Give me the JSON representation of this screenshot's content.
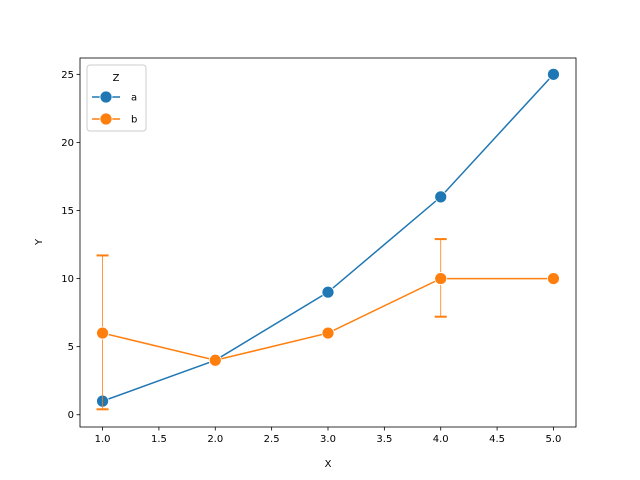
{
  "chart_data": {
    "type": "line",
    "xlabel": "X",
    "ylabel": "Y",
    "xlim": [
      0.8,
      5.2
    ],
    "ylim": [
      -0.9,
      26.2
    ],
    "x_ticks": [
      1.0,
      1.5,
      2.0,
      2.5,
      3.0,
      3.5,
      4.0,
      4.5,
      5.0
    ],
    "x_tick_labels": [
      "1.0",
      "1.5",
      "2.0",
      "2.5",
      "3.0",
      "3.5",
      "4.0",
      "4.5",
      "5.0"
    ],
    "y_ticks": [
      0,
      5,
      10,
      15,
      20,
      25
    ],
    "y_tick_labels": [
      "0",
      "5",
      "10",
      "15",
      "20",
      "25"
    ],
    "grid": false,
    "legend": {
      "title": "Z",
      "placement": "top-left"
    },
    "series": [
      {
        "name": "a",
        "color": "#1f77b4",
        "x": [
          1,
          2,
          3,
          4,
          5
        ],
        "y": [
          1,
          4,
          9,
          16,
          25
        ],
        "err_low": [
          null,
          null,
          null,
          null,
          null
        ],
        "err_high": [
          null,
          null,
          null,
          null,
          null
        ]
      },
      {
        "name": "b",
        "color": "#ff7f0e",
        "x": [
          1,
          2,
          3,
          4,
          5
        ],
        "y": [
          6,
          4,
          6,
          10,
          10
        ],
        "err_low": [
          0.4,
          null,
          null,
          7.2,
          null
        ],
        "err_high": [
          11.7,
          null,
          null,
          12.9,
          null
        ]
      }
    ]
  }
}
